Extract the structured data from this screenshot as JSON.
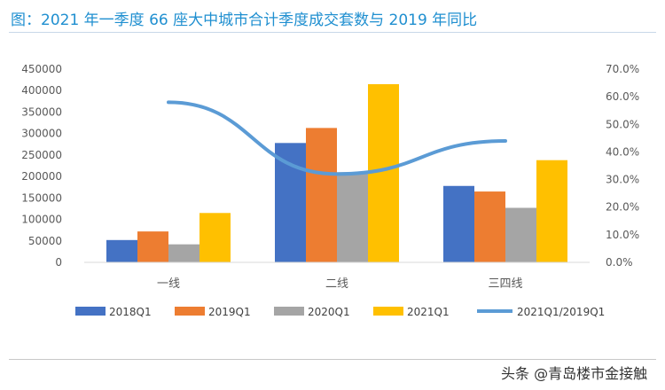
{
  "title": "图：2021 年一季度 66 座大中城市合计季度成交套数与 2019 年同比",
  "watermark": "头条 @青岛楼市金接触",
  "colors": {
    "title": "#1f8fd0",
    "series": [
      "#4472c4",
      "#ed7d31",
      "#a5a5a5",
      "#ffc000"
    ],
    "line": "#5b9bd5"
  },
  "chart_data": {
    "type": "bar",
    "categories": [
      "一线",
      "二线",
      "三四线"
    ],
    "series": [
      {
        "name": "2018Q1",
        "values": [
          52000,
          278000,
          178000
        ]
      },
      {
        "name": "2019Q1",
        "values": [
          72000,
          313000,
          165000
        ]
      },
      {
        "name": "2020Q1",
        "values": [
          42000,
          210000,
          127000
        ]
      },
      {
        "name": "2021Q1",
        "values": [
          115000,
          415000,
          238000
        ]
      }
    ],
    "line_series": {
      "name": "2021Q1/2019Q1",
      "values": [
        0.58,
        0.32,
        0.44
      ],
      "axis": "right"
    },
    "ylim": [
      0,
      450000
    ],
    "yticks": [
      "0",
      "50000",
      "100000",
      "150000",
      "200000",
      "250000",
      "300000",
      "350000",
      "400000",
      "450000"
    ],
    "y2lim": [
      0,
      0.7
    ],
    "y2ticks": [
      "0.0%",
      "10.0%",
      "20.0%",
      "30.0%",
      "40.0%",
      "50.0%",
      "60.0%",
      "70.0%"
    ],
    "grid": false,
    "legend": "bottom"
  }
}
